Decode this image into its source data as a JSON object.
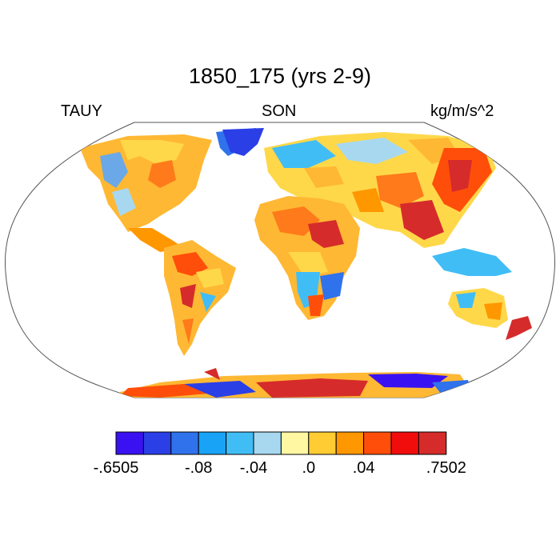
{
  "title": "1850_175 (yrs 2-9)",
  "header": {
    "left": "TAUY",
    "center": "SON",
    "right": "kg/m/s^2"
  },
  "colorbar": {
    "colors": [
      "#3a12f2",
      "#2a3fe6",
      "#2f72ec",
      "#19a3f6",
      "#41bdf6",
      "#a7d8f0",
      "#fff7a1",
      "#ffcc33",
      "#ff9700",
      "#ff4e0a",
      "#f20d0d",
      "#d62b2b"
    ],
    "labels": [
      {
        "text": "-.6505",
        "boundary": 0
      },
      {
        "text": "-.08",
        "boundary": 3
      },
      {
        "text": "-.04",
        "boundary": 5
      },
      {
        "text": ".0",
        "boundary": 7
      },
      {
        "text": ".04",
        "boundary": 9
      },
      {
        "text": ".7502",
        "boundary": 12
      }
    ]
  }
}
